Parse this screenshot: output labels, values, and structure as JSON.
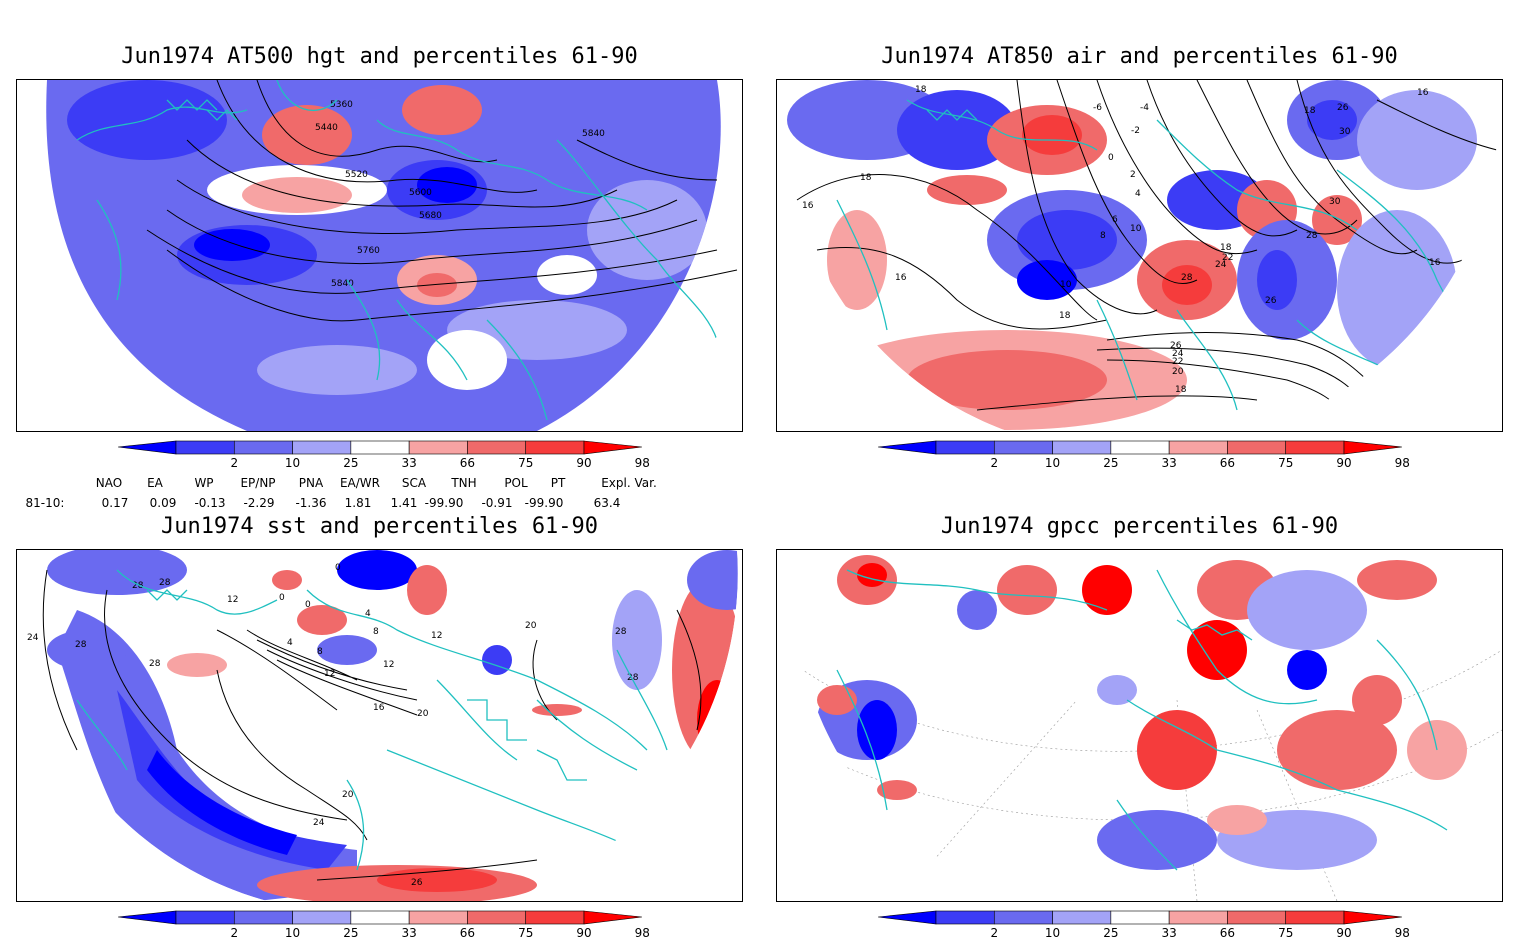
{
  "panels": {
    "hgt": {
      "title": "Jun1974 AT500 hgt and percentiles 61-90",
      "contour_labels": [
        "5360",
        "5440",
        "5520",
        "5600",
        "5680",
        "5760",
        "5840",
        "5840"
      ]
    },
    "air": {
      "title": "Jun1974 AT850 air and percentiles 61-90",
      "contour_labels": [
        "18",
        "16",
        "18",
        "16",
        "10",
        "6",
        "8",
        "10",
        "18",
        "-4",
        "-2",
        "0",
        "2",
        "4",
        "-6",
        "18",
        "26",
        "30",
        "30",
        "28",
        "18",
        "22",
        "24",
        "28",
        "26",
        "26",
        "24",
        "22",
        "20",
        "18",
        "16",
        "16"
      ]
    },
    "sst": {
      "title": "Jun1974 sst and percentiles 61-90",
      "contour_labels": [
        "24",
        "28",
        "28",
        "28",
        "28",
        "12",
        "0",
        "0",
        "4",
        "8",
        "12",
        "16",
        "20",
        "12",
        "12",
        "20",
        "28",
        "28",
        "20",
        "24",
        "26",
        "4",
        "0",
        "8"
      ]
    },
    "gpcc": {
      "title": "Jun1974 gpcc percentiles 61-90"
    }
  },
  "colorbar": {
    "ticks": [
      "2",
      "10",
      "25",
      "33",
      "66",
      "75",
      "90",
      "98"
    ],
    "colors": [
      "#0000ff",
      "#3c3cf5",
      "#6a6af0",
      "#a3a3f7",
      "#ffffff",
      "#f7a3a3",
      "#f06a6a",
      "#f53c3c",
      "#ff0000"
    ]
  },
  "indices": {
    "headers": [
      "NAO",
      "EA",
      "WP",
      "EP/NP",
      "PNA",
      "EA/WR",
      "SCA",
      "TNH",
      "POL",
      "PT",
      "Expl. Var."
    ],
    "row_label": "81-10:",
    "values": [
      "0.17",
      "0.09",
      "-0.13",
      "-2.29",
      "-1.36",
      "1.81",
      "1.41",
      "-99.90",
      "-0.91",
      "-99.90",
      "63.4"
    ]
  },
  "colors": {
    "coast": "#20c0c0",
    "frame": "#000000"
  }
}
